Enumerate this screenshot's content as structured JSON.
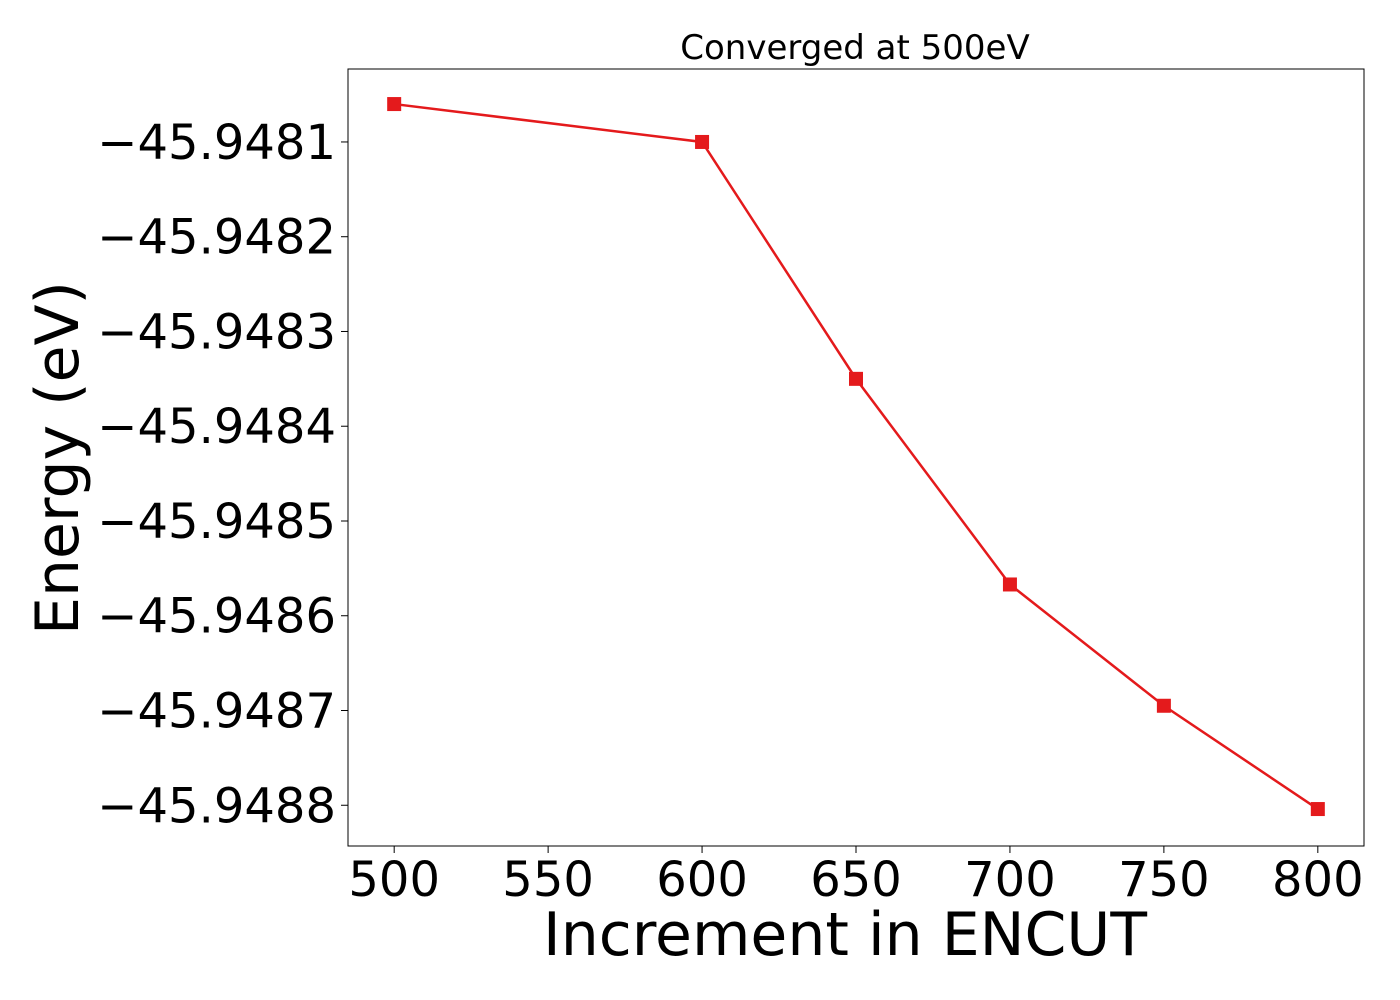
{
  "chart_data": {
    "type": "line",
    "title": "Converged at 500eV",
    "xlabel": "Increment in ENCUT",
    "ylabel": "Energy (eV)",
    "x": [
      500,
      600,
      650,
      700,
      750,
      800
    ],
    "series": [
      {
        "values": [
          -45.94806,
          -45.9481,
          -45.94835,
          -45.948567,
          -45.948695,
          -45.948804
        ]
      }
    ],
    "xticks": [
      500,
      550,
      600,
      650,
      700,
      750,
      800
    ],
    "xtick_labels": [
      "500",
      "550",
      "600",
      "650",
      "700",
      "750",
      "800"
    ],
    "yticks": [
      -45.9481,
      -45.9482,
      -45.9483,
      -45.9484,
      -45.9485,
      -45.9486,
      -45.9487,
      -45.9488
    ],
    "ytick_labels": [
      "−45.9481",
      "−45.9482",
      "−45.9483",
      "−45.9484",
      "−45.9485",
      "−45.9486",
      "−45.9487",
      "−45.9488"
    ],
    "xlim": [
      485,
      815
    ],
    "ylim": [
      -45.948843,
      -45.948023
    ],
    "grid": false,
    "marker": "square",
    "line_color": "#e41a1c"
  }
}
